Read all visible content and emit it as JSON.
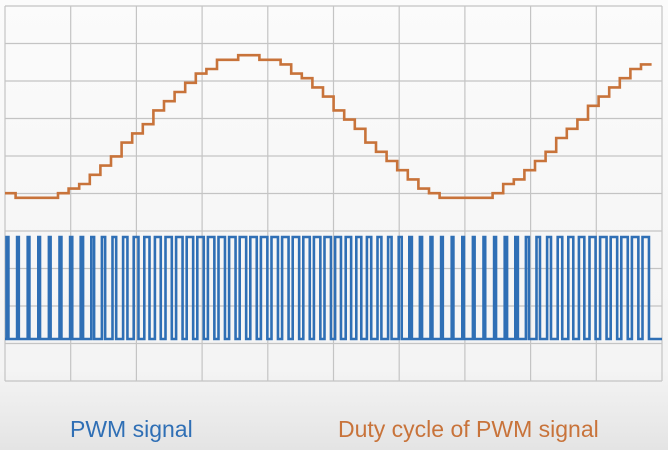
{
  "labels": {
    "pwm": "PWM signal",
    "duty": "Duty cycle of PWM signal"
  }
}
